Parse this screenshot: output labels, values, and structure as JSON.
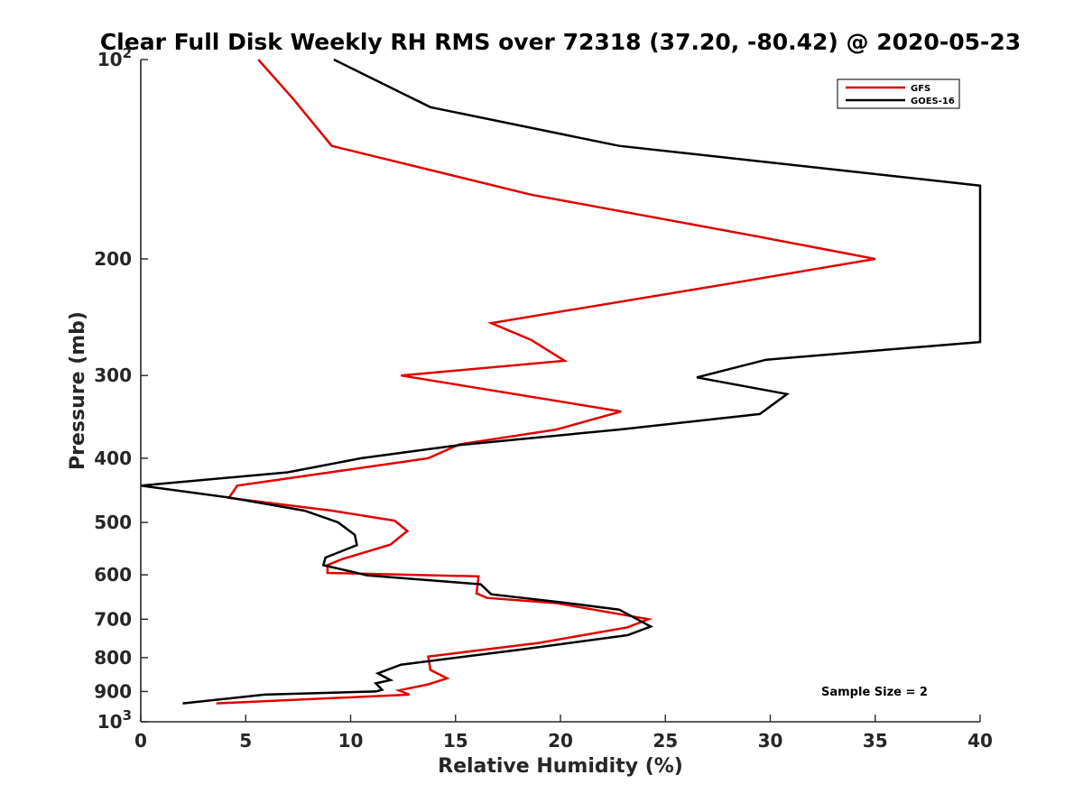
{
  "chart_data": {
    "type": "line",
    "title": "Clear Full Disk Weekly RH RMS over 72318 (37.20, -80.42) @ 2020-05-23",
    "xlabel": "Relative Humidity (%)",
    "ylabel": "Pressure (mb)",
    "xlim": [
      0,
      40
    ],
    "ylim": [
      100,
      1000
    ],
    "y_scale": "log",
    "y_direction": "reversed",
    "x_ticks": [
      "0",
      "5",
      "10",
      "15",
      "20",
      "25",
      "30",
      "35",
      "40"
    ],
    "y_ticks": [
      {
        "value": 100,
        "base": "10",
        "exp": "2"
      },
      {
        "value": 200,
        "label": "200"
      },
      {
        "value": 300,
        "label": "300"
      },
      {
        "value": 400,
        "label": "400"
      },
      {
        "value": 500,
        "label": "500"
      },
      {
        "value": 600,
        "label": "600"
      },
      {
        "value": 700,
        "label": "700"
      },
      {
        "value": 800,
        "label": "800"
      },
      {
        "value": 900,
        "label": "900"
      },
      {
        "value": 1000,
        "base": "10",
        "exp": "3"
      }
    ],
    "legend_position": "top-right",
    "grid": false,
    "series": [
      {
        "name": "GFS",
        "color": "#e00000",
        "points": [
          [
            5.6,
            100
          ],
          [
            7.3,
            115
          ],
          [
            9.1,
            135
          ],
          [
            18.6,
            160
          ],
          [
            29.4,
            185
          ],
          [
            35.0,
            200
          ],
          [
            27.3,
            220
          ],
          [
            16.7,
            250
          ],
          [
            18.6,
            265
          ],
          [
            20.2,
            285
          ],
          [
            12.4,
            300
          ],
          [
            22.9,
            340
          ],
          [
            19.8,
            362
          ],
          [
            15.2,
            381
          ],
          [
            13.7,
            400
          ],
          [
            4.6,
            440
          ],
          [
            4.2,
            459
          ],
          [
            9.1,
            480
          ],
          [
            12.1,
            497
          ],
          [
            12.7,
            515
          ],
          [
            11.9,
            540
          ],
          [
            9.6,
            568
          ],
          [
            8.9,
            580
          ],
          [
            8.9,
            596
          ],
          [
            16.1,
            603
          ],
          [
            16.0,
            640
          ],
          [
            16.5,
            650
          ],
          [
            19.8,
            662
          ],
          [
            24.2,
            700
          ],
          [
            23.2,
            720
          ],
          [
            19.0,
            760
          ],
          [
            13.7,
            797
          ],
          [
            13.8,
            835
          ],
          [
            14.6,
            860
          ],
          [
            13.7,
            878
          ],
          [
            12.3,
            897
          ],
          [
            12.8,
            910
          ],
          [
            3.6,
            938
          ]
        ]
      },
      {
        "name": "GOES-16",
        "color": "#000000",
        "points": [
          [
            9.2,
            100
          ],
          [
            13.8,
            118
          ],
          [
            22.8,
            135
          ],
          [
            40.0,
            155
          ],
          [
            40.0,
            267
          ],
          [
            29.8,
            284
          ],
          [
            26.5,
            302
          ],
          [
            30.8,
            320
          ],
          [
            29.5,
            343
          ],
          [
            22.8,
            362
          ],
          [
            15.2,
            382
          ],
          [
            10.5,
            400
          ],
          [
            7.0,
            420
          ],
          [
            0.0,
            440
          ],
          [
            4.3,
            459
          ],
          [
            7.8,
            480
          ],
          [
            9.4,
            500
          ],
          [
            10.2,
            522
          ],
          [
            10.3,
            541
          ],
          [
            8.8,
            565
          ],
          [
            8.7,
            580
          ],
          [
            10.8,
            601
          ],
          [
            16.2,
            620
          ],
          [
            16.7,
            642
          ],
          [
            20.2,
            661
          ],
          [
            22.8,
            677
          ],
          [
            24.3,
            718
          ],
          [
            23.2,
            740
          ],
          [
            18.1,
            778
          ],
          [
            12.4,
            820
          ],
          [
            11.3,
            845
          ],
          [
            11.9,
            865
          ],
          [
            11.2,
            875
          ],
          [
            11.5,
            895
          ],
          [
            11.2,
            900
          ],
          [
            5.9,
            910
          ],
          [
            2.0,
            938
          ]
        ]
      }
    ],
    "annotation": "Sample Size = 2"
  }
}
